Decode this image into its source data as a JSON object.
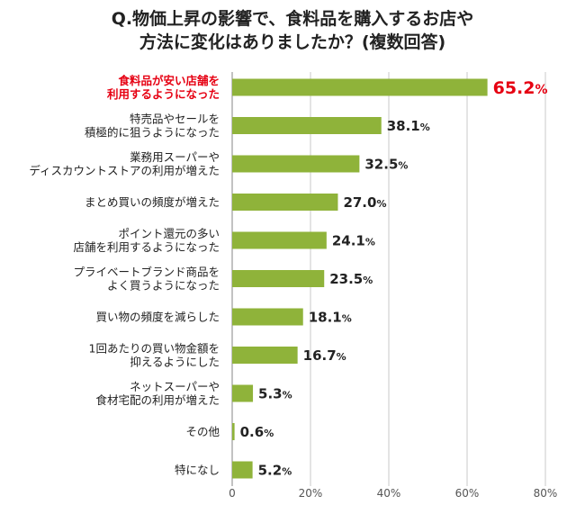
{
  "chart_data": {
    "type": "bar",
    "orientation": "horizontal",
    "title": [
      "Q.物価上昇の影響で、食料品を購入するお店や",
      "方法に変化はありましたか？(複数回答)"
    ],
    "categories": [
      [
        "食料品が安い店舗を",
        "利用するようになった"
      ],
      [
        "特売品やセールを",
        "積極的に狙うようになった"
      ],
      [
        "業務用スーパーや",
        "ディスカウントストアの利用が増えた"
      ],
      [
        "まとめ買いの頻度が増えた"
      ],
      [
        "ポイント還元の多い",
        "店舗を利用するようになった"
      ],
      [
        "プライベートブランド商品を",
        "よく買うようになった"
      ],
      [
        "買い物の頻度を減らした"
      ],
      [
        "1回あたりの買い物金額を",
        "抑えるようにした"
      ],
      [
        "ネットスーパーや",
        "食材宅配の利用が増えた"
      ],
      [
        "その他"
      ],
      [
        "特になし"
      ]
    ],
    "values": [
      65.2,
      38.1,
      32.5,
      27.0,
      24.1,
      23.5,
      18.1,
      16.7,
      5.3,
      0.6,
      5.2
    ],
    "value_labels": [
      "65.2",
      "38.1",
      "32.5",
      "27.0",
      "24.1",
      "23.5",
      "18.1",
      "16.7",
      "5.3",
      "0.6",
      "5.2"
    ],
    "value_suffix": "%",
    "highlight_index": 0,
    "xlim": [
      0,
      80
    ],
    "xticks": [
      "0",
      "20%",
      "40%",
      "60%",
      "80%"
    ],
    "xtick_values": [
      0,
      20,
      40,
      60,
      80
    ],
    "grid": true,
    "legend": "none",
    "colors": {
      "bar": "#8fb33a",
      "highlight_text": "#e60012",
      "grid": "#c8c8c8",
      "axis": "#999999"
    }
  }
}
